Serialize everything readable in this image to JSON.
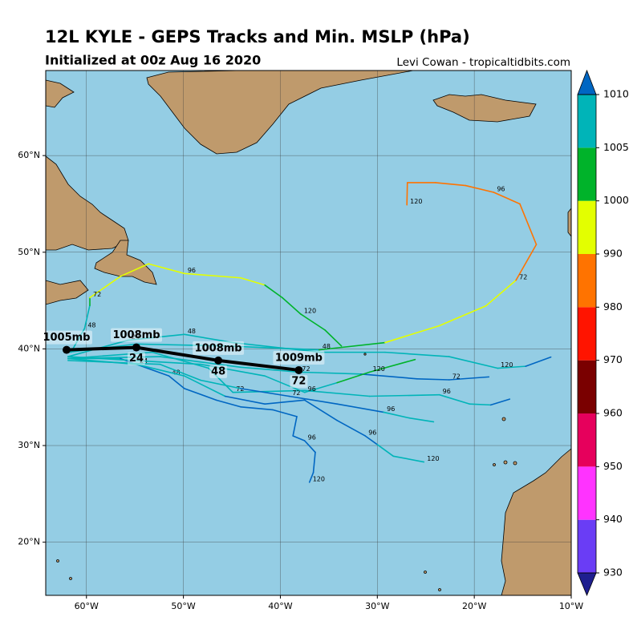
{
  "chart_data": {
    "type": "map",
    "title": "12L KYLE - GEPS Tracks and Min. MSLP (hPa)",
    "subtitle": "Initialized at 00z Aug 16 2020",
    "credit": "Levi Cowan - tropicaltidbits.com",
    "xlim": [
      -64.2,
      -10
    ],
    "ylim": [
      14.5,
      68.8
    ],
    "xticks": [
      {
        "value": -60,
        "label": "60°W"
      },
      {
        "value": -50,
        "label": "50°W"
      },
      {
        "value": -40,
        "label": "40°W"
      },
      {
        "value": -30,
        "label": "30°W"
      },
      {
        "value": -20,
        "label": "20°W"
      },
      {
        "value": -10,
        "label": "10°W"
      }
    ],
    "yticks": [
      {
        "value": 20,
        "label": "20°N"
      },
      {
        "value": 30,
        "label": "30°N"
      },
      {
        "value": 40,
        "label": "40°N"
      },
      {
        "value": 50,
        "label": "50°N"
      },
      {
        "value": 60,
        "label": "60°N"
      }
    ],
    "grid": true,
    "colorbar": {
      "levels": [
        930,
        940,
        950,
        960,
        970,
        980,
        990,
        1000,
        1005,
        1010
      ],
      "colors": [
        "#6a3df5",
        "#ff33ff",
        "#e6005c",
        "#7a0000",
        "#ff1400",
        "#ff7300",
        "#e3ff00",
        "#00b32a",
        "#00b4b8"
      ],
      "under_color": "#1f1f8f",
      "over_color": "#0066c2"
    },
    "series": [
      {
        "x": [
          -61.9,
          -54.85,
          -45.7,
          -36.0,
          -29.2,
          -23.6,
          -18.8,
          -15.7,
          -13.6,
          -15.3,
          -18.0,
          -20.9,
          -24.0,
          -26.9,
          -26.95
        ],
        "y": [
          39.65,
          40.5,
          40.3,
          39.9,
          40.65,
          42.4,
          44.45,
          47.1,
          50.8,
          55.0,
          56.2,
          56.9,
          57.2,
          57.2,
          54.9
        ],
        "mslp": [
          1006,
          1006,
          1006,
          1005,
          1003,
          998,
          994,
          992,
          988,
          986,
          986,
          987,
          988,
          988,
          989
        ],
        "hours": [
          null,
          null,
          null,
          48,
          null,
          null,
          null,
          72,
          null,
          null,
          96,
          null,
          null,
          null,
          120
        ]
      },
      {
        "x": [
          -61.6,
          -60.2,
          -59.65,
          -59.65,
          -56.5,
          -53.6,
          -49.9,
          -44.1,
          -41.6,
          -39.8,
          -37.9,
          -35.4,
          -33.7
        ],
        "y": [
          39.65,
          42.1,
          44.5,
          45.3,
          47.5,
          48.8,
          47.8,
          47.35,
          46.6,
          45.3,
          43.6,
          41.95,
          40.3
        ],
        "mslp": [
          1007,
          1006,
          1006,
          1003,
          997,
          996,
          996,
          997,
          998,
          1001,
          1002,
          1002,
          1003
        ],
        "hours": [
          null,
          48,
          null,
          72,
          null,
          null,
          96,
          null,
          null,
          null,
          120,
          null,
          null
        ]
      },
      {
        "x": [
          -61.9,
          -55.7,
          -49.9,
          -44.9,
          -35.8,
          -29.2,
          -22.6,
          -17.6,
          -14.7,
          -12.1
        ],
        "y": [
          39.2,
          40.9,
          41.5,
          40.65,
          39.65,
          39.65,
          39.2,
          38.0,
          38.2,
          39.15
        ],
        "mslp": [
          1007,
          1007,
          1007,
          1007,
          1008,
          1008,
          1008,
          1008,
          1009,
          1011
        ],
        "hours": [
          null,
          24,
          48,
          null,
          null,
          null,
          null,
          120,
          null,
          null
        ]
      },
      {
        "x": [
          -61.9,
          -52.4,
          -44.1,
          -38.1,
          -31.7,
          -25.9,
          -22.6,
          -18.5
        ],
        "y": [
          39.0,
          39.2,
          38.1,
          37.6,
          37.4,
          36.9,
          36.8,
          37.1
        ],
        "mslp": [
          1007,
          1007,
          1008,
          1008,
          1009,
          1011,
          1011,
          1011
        ],
        "hours": [
          null,
          null,
          null,
          72,
          null,
          null,
          72,
          null
        ]
      },
      {
        "x": [
          -61.9,
          -53.2,
          -47.4,
          -44.9,
          -37.5,
          -30.8,
          -23.6,
          -20.5,
          -18.3,
          -16.35
        ],
        "y": [
          39.0,
          39.65,
          38.0,
          35.5,
          35.7,
          35.1,
          35.25,
          34.3,
          34.2,
          34.8
        ],
        "mslp": [
          1007,
          1007,
          1007,
          1007,
          1008,
          1008,
          1008,
          1009,
          1009,
          1011
        ],
        "hours": [
          null,
          null,
          null,
          72,
          null,
          null,
          96,
          null,
          null,
          null
        ]
      },
      {
        "x": [
          -61.9,
          -56.5,
          -51.5,
          -49.9,
          -46.6,
          -44.1,
          -40.8,
          -38.3,
          -38.7,
          -37.5,
          -36.4,
          -36.6,
          -37.0
        ],
        "y": [
          39.0,
          39.0,
          37.2,
          35.9,
          34.7,
          34.0,
          33.7,
          33.0,
          31.0,
          30.5,
          29.3,
          27.2,
          26.2
        ],
        "mslp": [
          1008,
          1008,
          1011,
          1011,
          1011,
          1011,
          1011,
          1011,
          1011,
          1011,
          1012,
          1012,
          1012
        ],
        "hours": [
          null,
          null,
          48,
          null,
          null,
          null,
          null,
          null,
          null,
          96,
          null,
          null,
          120
        ]
      },
      {
        "x": [
          -61.9,
          -54.85,
          -49.9,
          -45.7,
          -41.6,
          -37.5,
          -34.15,
          -31.25,
          -30.0,
          -28.35,
          -25.2
        ],
        "y": [
          39.0,
          38.4,
          37.2,
          35.1,
          34.3,
          34.7,
          32.6,
          31.0,
          30.1,
          28.9,
          28.3
        ],
        "mslp": [
          1008,
          1008,
          1008,
          1008,
          1011,
          1011,
          1011,
          1011,
          1011,
          1009,
          1009
        ],
        "hours": [
          null,
          24,
          null,
          null,
          null,
          null,
          null,
          96,
          null,
          null,
          120
        ]
      },
      {
        "x": [
          -61.9,
          -52.4,
          -48.2,
          -44.1,
          -39.1,
          -34.15,
          -29.35,
          -26.7,
          -24.2
        ],
        "y": [
          38.8,
          38.4,
          36.75,
          35.9,
          35.1,
          34.3,
          33.45,
          32.85,
          32.45
        ],
        "mslp": [
          1008,
          1008,
          1008,
          1008,
          1011,
          1011,
          1011,
          1008,
          1008
        ],
        "hours": [
          null,
          null,
          null,
          null,
          72,
          null,
          96,
          null,
          null
        ]
      },
      {
        "x": [
          -61.9,
          -48.2,
          -41.6,
          -37.5,
          -34.15,
          -30.8,
          -26.1
        ],
        "y": [
          39.2,
          38.4,
          37.2,
          35.5,
          36.5,
          37.6,
          38.9
        ],
        "mslp": [
          1007,
          1007,
          1007,
          1007,
          1007,
          1004,
          1003
        ],
        "hours": [
          null,
          null,
          null,
          96,
          null,
          120,
          null
        ]
      }
    ],
    "mean": {
      "color": "#000000",
      "x": [
        -62.05,
        -54.85,
        -46.4,
        -38.1
      ],
      "y": [
        39.9,
        40.15,
        38.8,
        37.8
      ],
      "values": [
        1005,
        1008,
        1008,
        1009
      ],
      "value_labels": [
        "1005mb",
        "1008mb",
        "1008mb",
        "1009mb"
      ],
      "hours": [
        null,
        24,
        48,
        72
      ]
    }
  }
}
